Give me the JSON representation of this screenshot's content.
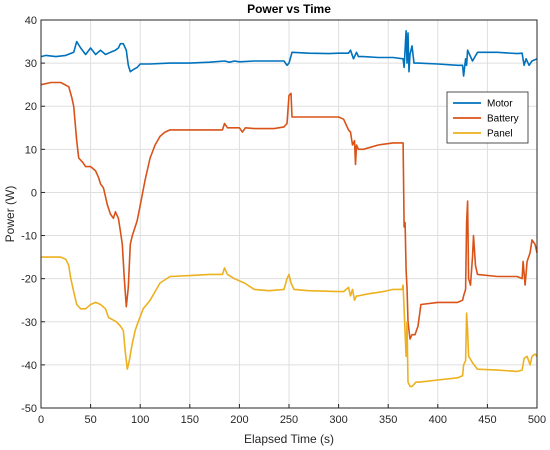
{
  "chart_data": {
    "type": "line",
    "title": "Power vs Time",
    "xlabel": "Elapsed Time (s)",
    "ylabel": "Power (W)",
    "xlim": [
      0,
      500
    ],
    "ylim": [
      -50,
      40
    ],
    "xticks": [
      "0",
      "50",
      "100",
      "150",
      "200",
      "250",
      "300",
      "350",
      "400",
      "450",
      "500"
    ],
    "yticks": [
      "-50",
      "-40",
      "-30",
      "-20",
      "-10",
      "0",
      "10",
      "20",
      "30",
      "40"
    ],
    "grid": true,
    "legend_position": "top-right",
    "colors": {
      "axis": "#262626",
      "grid": "#dfdfdf",
      "background": "#ffffff"
    },
    "series": [
      {
        "name": "Motor",
        "color": "#0072BD",
        "points": [
          [
            0,
            31.5
          ],
          [
            5,
            31.8
          ],
          [
            15,
            31.5
          ],
          [
            25,
            31.8
          ],
          [
            33,
            32.5
          ],
          [
            36,
            35
          ],
          [
            40,
            33.5
          ],
          [
            45,
            32
          ],
          [
            50,
            33.5
          ],
          [
            55,
            32
          ],
          [
            60,
            33
          ],
          [
            65,
            32
          ],
          [
            70,
            32.5
          ],
          [
            75,
            33
          ],
          [
            78,
            33.5
          ],
          [
            80,
            34.5
          ],
          [
            83,
            34.5
          ],
          [
            86,
            33
          ],
          [
            88,
            29.5
          ],
          [
            90,
            28
          ],
          [
            93,
            28.5
          ],
          [
            97,
            29
          ],
          [
            100,
            29.8
          ],
          [
            110,
            29.8
          ],
          [
            130,
            30
          ],
          [
            150,
            30
          ],
          [
            170,
            30.2
          ],
          [
            185,
            30.5
          ],
          [
            190,
            30.2
          ],
          [
            195,
            30.5
          ],
          [
            200,
            30.3
          ],
          [
            215,
            30.5
          ],
          [
            230,
            30.5
          ],
          [
            245,
            30.5
          ],
          [
            248,
            29.5
          ],
          [
            250,
            30
          ],
          [
            253,
            32.5
          ],
          [
            270,
            32.3
          ],
          [
            290,
            32.2
          ],
          [
            300,
            32.3
          ],
          [
            310,
            32.3
          ],
          [
            312,
            33
          ],
          [
            315,
            31
          ],
          [
            318,
            32.5
          ],
          [
            320,
            31.5
          ],
          [
            325,
            31.5
          ],
          [
            340,
            31.3
          ],
          [
            355,
            31.3
          ],
          [
            365,
            31
          ],
          [
            366,
            29
          ],
          [
            368,
            37.5
          ],
          [
            369,
            30
          ],
          [
            370,
            37
          ],
          [
            371,
            28
          ],
          [
            372,
            32
          ],
          [
            374,
            34
          ],
          [
            376,
            30
          ],
          [
            380,
            30
          ],
          [
            400,
            29.8
          ],
          [
            420,
            29.5
          ],
          [
            425,
            29.5
          ],
          [
            426,
            27
          ],
          [
            428,
            31
          ],
          [
            429,
            29.5
          ],
          [
            430,
            33
          ],
          [
            435,
            30.5
          ],
          [
            440,
            32.5
          ],
          [
            460,
            32.5
          ],
          [
            480,
            32.2
          ],
          [
            485,
            32.3
          ],
          [
            487,
            29.5
          ],
          [
            489,
            31
          ],
          [
            492,
            29.5
          ],
          [
            495,
            30.5
          ],
          [
            500,
            31
          ]
        ]
      },
      {
        "name": "Battery",
        "color": "#D95319",
        "points": [
          [
            0,
            25
          ],
          [
            10,
            25.5
          ],
          [
            20,
            25.5
          ],
          [
            28,
            24.5
          ],
          [
            31,
            22
          ],
          [
            33,
            20
          ],
          [
            36,
            12
          ],
          [
            38,
            8
          ],
          [
            42,
            7
          ],
          [
            45,
            6
          ],
          [
            50,
            6
          ],
          [
            55,
            5
          ],
          [
            58,
            3.5
          ],
          [
            60,
            2
          ],
          [
            63,
            1
          ],
          [
            67,
            -3
          ],
          [
            70,
            -5
          ],
          [
            73,
            -6
          ],
          [
            75,
            -4.5
          ],
          [
            78,
            -6
          ],
          [
            80,
            -9
          ],
          [
            82,
            -12
          ],
          [
            84,
            -20
          ],
          [
            86,
            -26.5
          ],
          [
            88,
            -22
          ],
          [
            90,
            -12
          ],
          [
            92,
            -10
          ],
          [
            95,
            -8
          ],
          [
            97,
            -6.5
          ],
          [
            100,
            -3
          ],
          [
            105,
            3
          ],
          [
            110,
            8
          ],
          [
            115,
            11
          ],
          [
            120,
            13
          ],
          [
            125,
            14
          ],
          [
            130,
            14.5
          ],
          [
            150,
            14.5
          ],
          [
            170,
            14.5
          ],
          [
            183,
            14.5
          ],
          [
            185,
            16
          ],
          [
            188,
            15
          ],
          [
            195,
            15
          ],
          [
            200,
            15
          ],
          [
            203,
            14
          ],
          [
            206,
            15
          ],
          [
            215,
            14.8
          ],
          [
            235,
            14.8
          ],
          [
            245,
            15.2
          ],
          [
            248,
            16
          ],
          [
            250,
            22.5
          ],
          [
            252,
            23
          ],
          [
            253,
            17.5
          ],
          [
            270,
            17.5
          ],
          [
            300,
            17.5
          ],
          [
            305,
            17
          ],
          [
            310,
            14.5
          ],
          [
            312,
            14
          ],
          [
            314,
            11
          ],
          [
            316,
            12
          ],
          [
            317,
            6.5
          ],
          [
            318,
            11
          ],
          [
            320,
            10
          ],
          [
            325,
            10
          ],
          [
            340,
            11
          ],
          [
            355,
            11.5
          ],
          [
            365,
            11.5
          ],
          [
            366,
            -8
          ],
          [
            367,
            -7
          ],
          [
            368,
            -18
          ],
          [
            369,
            -22
          ],
          [
            370,
            -30
          ],
          [
            372,
            -34
          ],
          [
            374,
            -33
          ],
          [
            377,
            -33
          ],
          [
            380,
            -31
          ],
          [
            383,
            -26
          ],
          [
            400,
            -25.5
          ],
          [
            420,
            -25.5
          ],
          [
            425,
            -25
          ],
          [
            426,
            -24
          ],
          [
            428,
            -22.5
          ],
          [
            429,
            -7
          ],
          [
            430,
            -2
          ],
          [
            431,
            -20
          ],
          [
            433,
            -21.5
          ],
          [
            435,
            -15
          ],
          [
            436,
            -10
          ],
          [
            438,
            -17
          ],
          [
            440,
            -19
          ],
          [
            460,
            -19.5
          ],
          [
            480,
            -19.5
          ],
          [
            485,
            -20
          ],
          [
            486,
            -16
          ],
          [
            488,
            -21.5
          ],
          [
            490,
            -16
          ],
          [
            493,
            -14
          ],
          [
            495,
            -11
          ],
          [
            498,
            -12
          ],
          [
            500,
            -14
          ]
        ]
      },
      {
        "name": "Panel",
        "color": "#EDB120",
        "points": [
          [
            0,
            -15
          ],
          [
            10,
            -15
          ],
          [
            20,
            -15
          ],
          [
            25,
            -15.5
          ],
          [
            28,
            -17
          ],
          [
            30,
            -20
          ],
          [
            33,
            -23
          ],
          [
            36,
            -26
          ],
          [
            40,
            -27
          ],
          [
            45,
            -27
          ],
          [
            50,
            -26
          ],
          [
            55,
            -25.5
          ],
          [
            60,
            -26
          ],
          [
            65,
            -27
          ],
          [
            68,
            -29
          ],
          [
            72,
            -29.5
          ],
          [
            76,
            -30
          ],
          [
            80,
            -31
          ],
          [
            83,
            -32
          ],
          [
            85,
            -37
          ],
          [
            87,
            -41
          ],
          [
            89,
            -39
          ],
          [
            92,
            -35
          ],
          [
            95,
            -32
          ],
          [
            98,
            -30
          ],
          [
            103,
            -27
          ],
          [
            110,
            -25
          ],
          [
            115,
            -23
          ],
          [
            120,
            -21
          ],
          [
            130,
            -19.5
          ],
          [
            150,
            -19.3
          ],
          [
            170,
            -19
          ],
          [
            183,
            -19
          ],
          [
            185,
            -17.5
          ],
          [
            188,
            -19
          ],
          [
            195,
            -20
          ],
          [
            205,
            -21
          ],
          [
            215,
            -22.5
          ],
          [
            230,
            -22.8
          ],
          [
            245,
            -22.5
          ],
          [
            248,
            -20
          ],
          [
            250,
            -19
          ],
          [
            252,
            -21
          ],
          [
            255,
            -22.5
          ],
          [
            270,
            -22.8
          ],
          [
            300,
            -23
          ],
          [
            305,
            -23
          ],
          [
            310,
            -22
          ],
          [
            312,
            -24
          ],
          [
            314,
            -22.5
          ],
          [
            316,
            -25
          ],
          [
            318,
            -24
          ],
          [
            320,
            -24
          ],
          [
            330,
            -23.5
          ],
          [
            345,
            -23
          ],
          [
            355,
            -22.5
          ],
          [
            364,
            -22.5
          ],
          [
            365,
            -21.5
          ],
          [
            366,
            -27
          ],
          [
            368,
            -38
          ],
          [
            369,
            -30
          ],
          [
            370,
            -44
          ],
          [
            372,
            -45
          ],
          [
            374,
            -45
          ],
          [
            378,
            -44
          ],
          [
            382,
            -44
          ],
          [
            400,
            -43.5
          ],
          [
            420,
            -43
          ],
          [
            425,
            -42.5
          ],
          [
            426,
            -40
          ],
          [
            428,
            -39
          ],
          [
            429,
            -28
          ],
          [
            430,
            -32
          ],
          [
            431,
            -38
          ],
          [
            435,
            -39.5
          ],
          [
            440,
            -41
          ],
          [
            460,
            -41.2
          ],
          [
            480,
            -41.5
          ],
          [
            485,
            -41.2
          ],
          [
            487,
            -38.5
          ],
          [
            490,
            -38
          ],
          [
            493,
            -40
          ],
          [
            495,
            -38
          ],
          [
            498,
            -37.5
          ],
          [
            500,
            -38
          ]
        ]
      }
    ]
  }
}
